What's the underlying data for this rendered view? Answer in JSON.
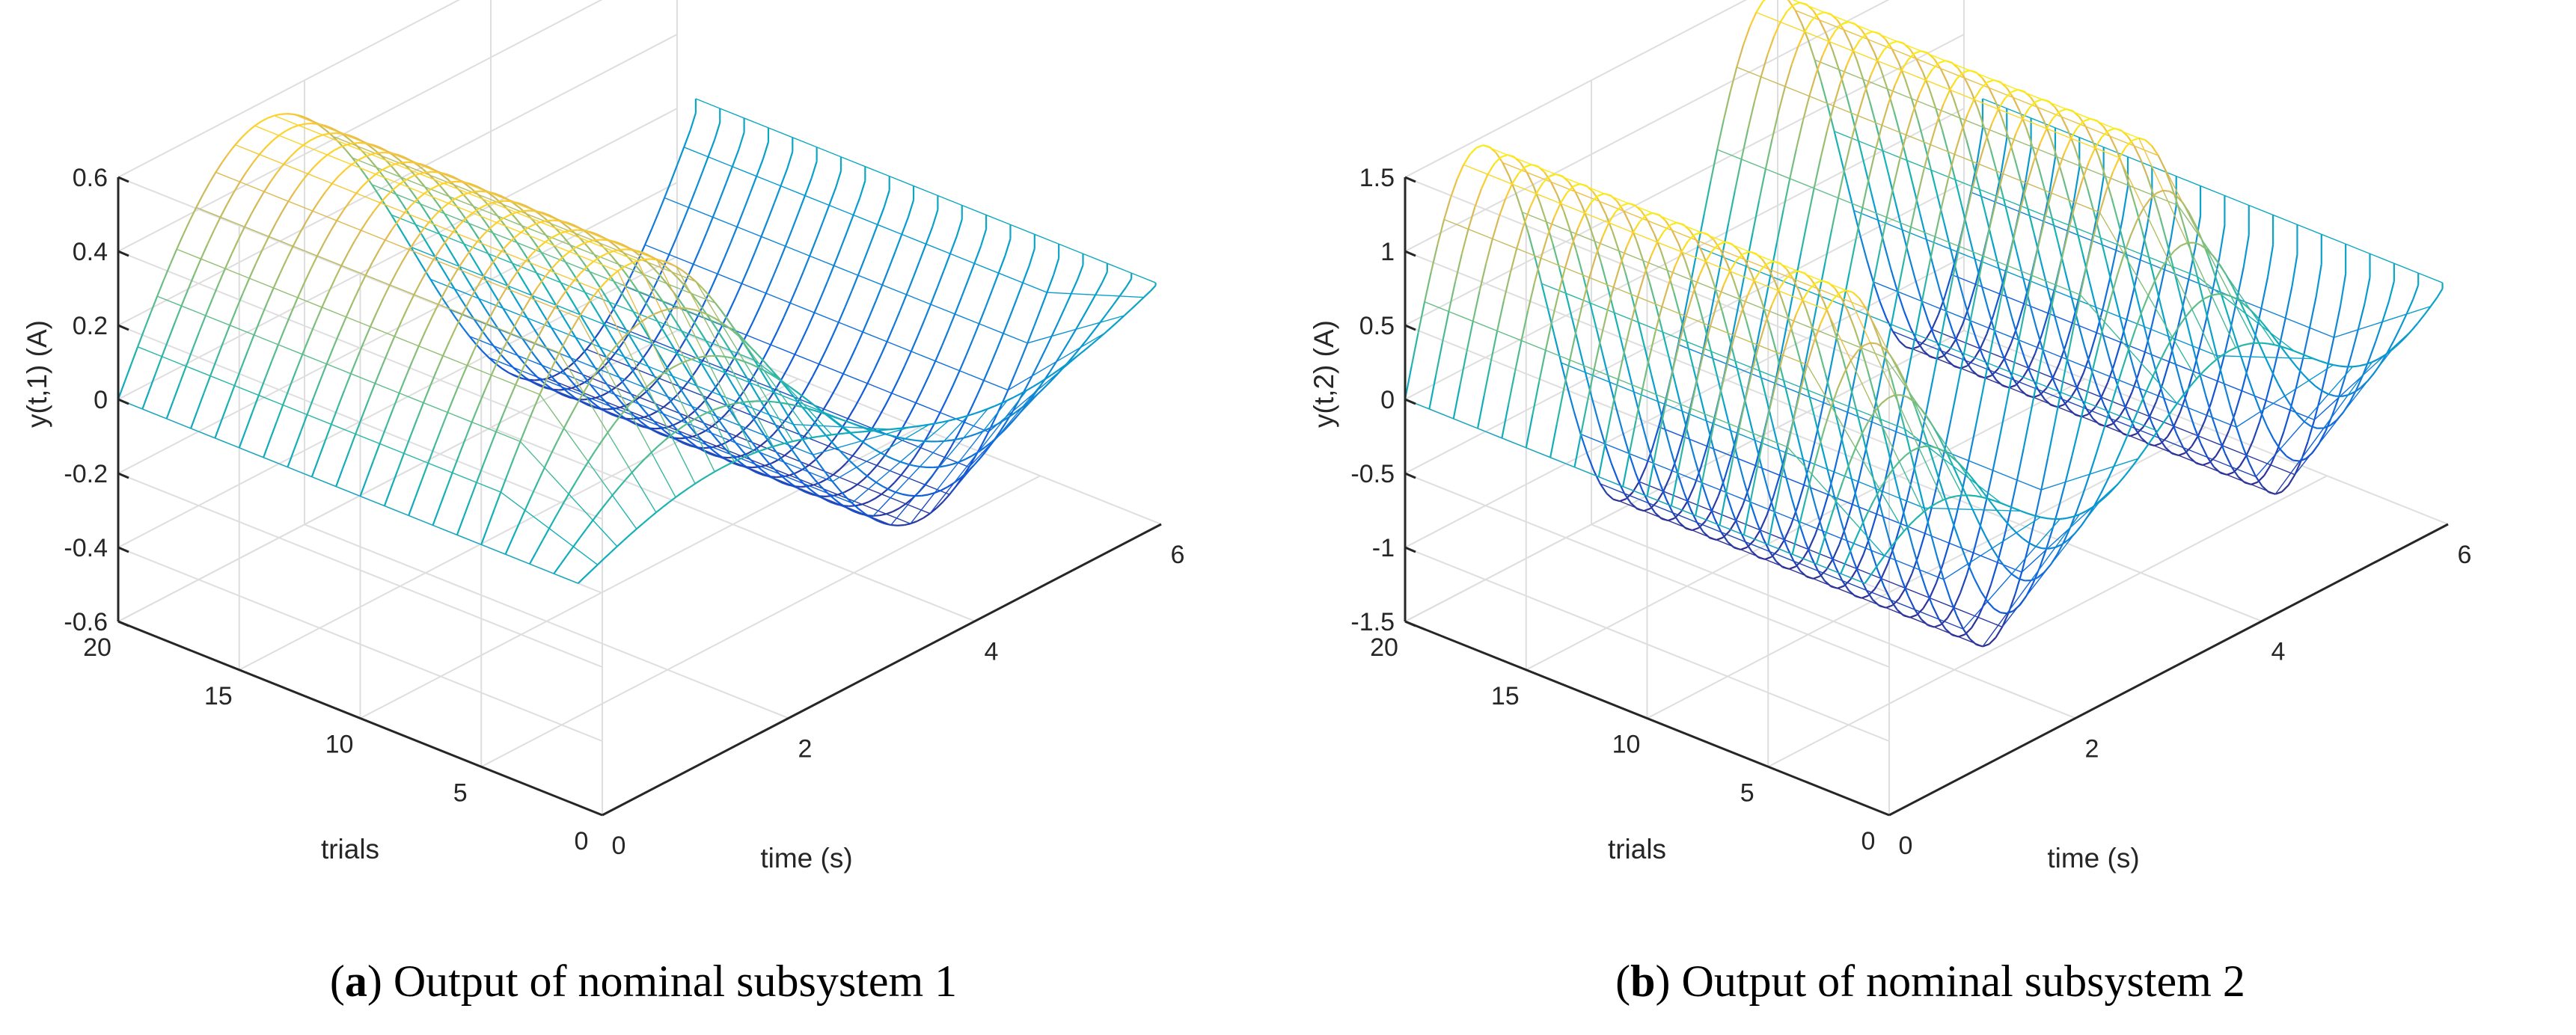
{
  "chart_data": [
    {
      "type": "surface",
      "panel_letter": "a",
      "caption": "Output of nominal subsystem 1",
      "zlabel": "y(t,1) (A)",
      "xlabel": "time (s)",
      "ylabel": "trials",
      "x_range": [
        0,
        6
      ],
      "y_range": [
        0,
        20
      ],
      "z_range": [
        -0.6,
        0.6
      ],
      "x_ticks": [
        "0",
        "2",
        "4",
        "6"
      ],
      "y_ticks": [
        "0",
        "5",
        "10",
        "15",
        "20"
      ],
      "z_ticks": [
        "-0.6",
        "-0.4",
        "-0.2",
        "0",
        "0.2",
        "0.4",
        "0.6"
      ],
      "function": "z = 0.55 * sin(t) * min(1, trial/5), trials 1..20, t in [0, 2*pi]",
      "amplitude": 0.55,
      "frequency": 1,
      "colormap": "parula"
    },
    {
      "type": "surface",
      "panel_letter": "b",
      "caption": "Output of nominal subsystem 2",
      "zlabel": "y(t,2) (A)",
      "xlabel": "time (s)",
      "ylabel": "trials",
      "x_range": [
        0,
        6
      ],
      "y_range": [
        0,
        20
      ],
      "z_range": [
        -1.5,
        1.5
      ],
      "x_ticks": [
        "0",
        "2",
        "4",
        "6"
      ],
      "y_ticks": [
        "0",
        "5",
        "10",
        "15",
        "20"
      ],
      "z_ticks": [
        "-1.5",
        "-1",
        "-0.5",
        "0",
        "0.5",
        "1",
        "1.5"
      ],
      "function": "z = 1.45 * sin(2t) * min(1, trial/5), trials 1..20, t in [0, 2*pi]",
      "amplitude": 1.45,
      "frequency": 2,
      "colormap": "parula"
    }
  ]
}
